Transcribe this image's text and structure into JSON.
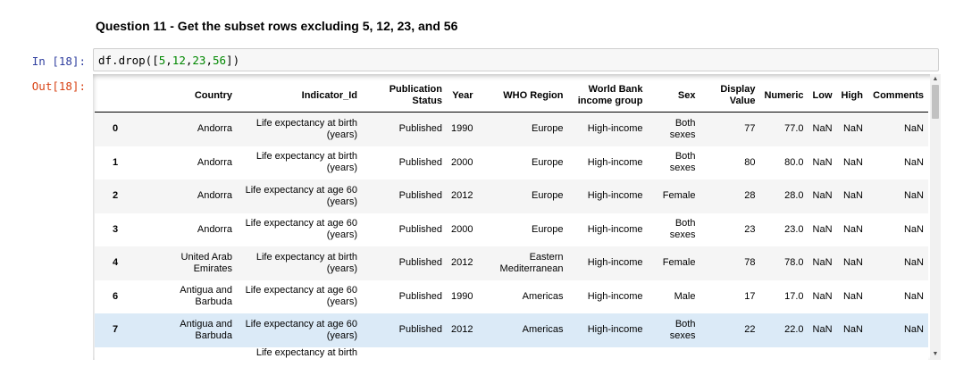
{
  "markdown": {
    "heading": "Question 11 - Get the subset rows excluding 5, 12, 23, and 56"
  },
  "input_prompt": "In [18]:",
  "output_prompt": "Out[18]:",
  "code": {
    "prefix": "df.drop([",
    "n1": "5",
    "c1": ",",
    "n2": "12",
    "c2": ",",
    "n3": "23",
    "c3": ",",
    "n4": "56",
    "suffix": "])"
  },
  "table": {
    "columns": [
      "",
      "Country",
      "Indicator_Id",
      "Publication Status",
      "Year",
      "WHO Region",
      "World Bank income group",
      "Sex",
      "Display Value",
      "Numeric",
      "Low",
      "High",
      "Comments"
    ],
    "rows": [
      [
        "0",
        "Andorra",
        "Life expectancy at birth (years)",
        "Published",
        "1990",
        "Europe",
        "High-income",
        "Both sexes",
        "77",
        "77.0",
        "NaN",
        "NaN",
        "NaN"
      ],
      [
        "1",
        "Andorra",
        "Life expectancy at birth (years)",
        "Published",
        "2000",
        "Europe",
        "High-income",
        "Both sexes",
        "80",
        "80.0",
        "NaN",
        "NaN",
        "NaN"
      ],
      [
        "2",
        "Andorra",
        "Life expectancy at age 60 (years)",
        "Published",
        "2012",
        "Europe",
        "High-income",
        "Female",
        "28",
        "28.0",
        "NaN",
        "NaN",
        "NaN"
      ],
      [
        "3",
        "Andorra",
        "Life expectancy at age 60 (years)",
        "Published",
        "2000",
        "Europe",
        "High-income",
        "Both sexes",
        "23",
        "23.0",
        "NaN",
        "NaN",
        "NaN"
      ],
      [
        "4",
        "United Arab Emirates",
        "Life expectancy at birth (years)",
        "Published",
        "2012",
        "Eastern Mediterranean",
        "High-income",
        "Female",
        "78",
        "78.0",
        "NaN",
        "NaN",
        "NaN"
      ],
      [
        "6",
        "Antigua and Barbuda",
        "Life expectancy at age 60 (years)",
        "Published",
        "1990",
        "Americas",
        "High-income",
        "Male",
        "17",
        "17.0",
        "NaN",
        "NaN",
        "NaN"
      ],
      [
        "7",
        "Antigua and Barbuda",
        "Life expectancy at age 60 (years)",
        "Published",
        "2012",
        "Americas",
        "High-income",
        "Both sexes",
        "22",
        "22.0",
        "NaN",
        "NaN",
        "NaN"
      ]
    ],
    "partial_row_text": "Life expectancy at birth",
    "highlighted_row_index": 6
  },
  "colors": {
    "in_prompt": "#303f9f",
    "out_prompt": "#d84315",
    "code_number": "#008800",
    "row_highlight": "#dbeaf7"
  }
}
